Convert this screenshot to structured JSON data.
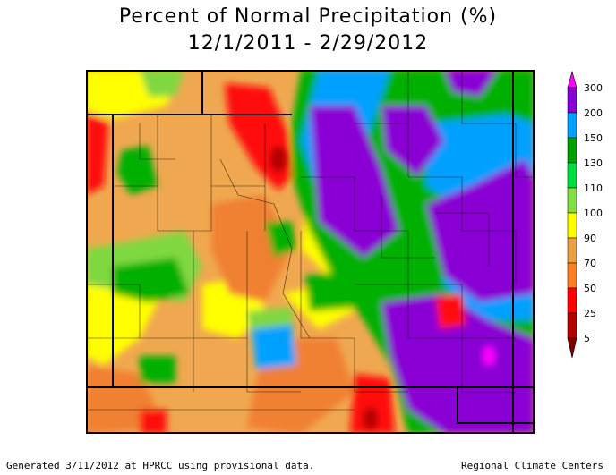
{
  "title": {
    "line1": "Percent of Normal Precipitation (%)",
    "line2": "12/1/2011 - 2/29/2012"
  },
  "legend": {
    "labels": [
      "300",
      "200",
      "150",
      "130",
      "110",
      "100",
      "90",
      "70",
      "50",
      "25",
      "5"
    ],
    "colors": [
      "#ff00ff",
      "#8a00d4",
      "#00a0ff",
      "#00a000",
      "#00dd44",
      "#88dd44",
      "#ffff00",
      "#e8a040",
      "#ff8020",
      "#ff0000",
      "#b00000",
      "#800000"
    ]
  },
  "map_colors": {
    "orange": "#f0a850",
    "dark_orange": "#f08030",
    "yellow": "#ffff00",
    "light_green": "#80d840",
    "green": "#00b000",
    "blue": "#00a0ff",
    "purple": "#8a00d4",
    "red": "#ff1010",
    "dark_red": "#b00000"
  },
  "footer": {
    "left": "Generated 3/11/2012 at HPRCC using provisional data.",
    "right": "Regional Climate Centers"
  }
}
